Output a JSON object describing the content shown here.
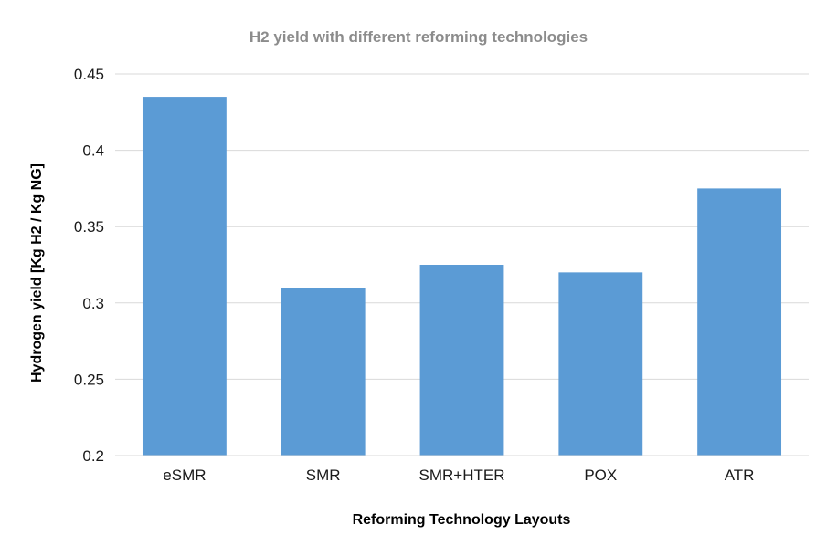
{
  "chart_data": {
    "type": "bar",
    "title": "H2 yield with different reforming technologies",
    "xlabel": "Reforming Technology Layouts",
    "ylabel": "Hydrogen yield [Kg H2 / Kg NG]",
    "categories": [
      "eSMR",
      "SMR",
      "SMR+HTER",
      "POX",
      "ATR"
    ],
    "values": [
      0.435,
      0.31,
      0.325,
      0.32,
      0.375
    ],
    "ylim": [
      0.2,
      0.45
    ],
    "yticks": [
      "0.2",
      "0.25",
      "0.3",
      "0.35",
      "0.4",
      "0.45"
    ],
    "grid": true,
    "legend": "none",
    "bar_color": "#5b9bd5"
  }
}
